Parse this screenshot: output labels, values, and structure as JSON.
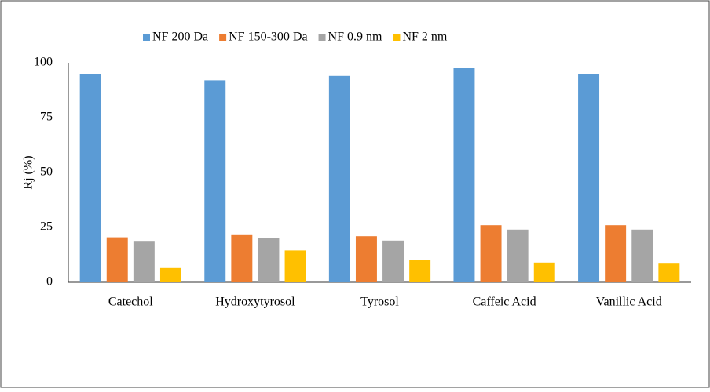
{
  "chart_data": {
    "type": "bar",
    "y_label": "Rj (%)",
    "categories": [
      "Catechol",
      "Hydroxytyrosol",
      "Tyrosol",
      "Caffeic Acid",
      "Vanillic Acid"
    ],
    "series": [
      {
        "name": "NF 200 Da",
        "color": "#5b9bd5",
        "values": [
          95,
          92,
          94,
          97.5,
          95
        ]
      },
      {
        "name": "NF 150-300 Da",
        "color": "#ed7d31",
        "values": [
          20.5,
          21.5,
          21,
          26,
          26
        ]
      },
      {
        "name": "NF 0.9 nm",
        "color": "#a5a5a5",
        "values": [
          18.5,
          20,
          19,
          24,
          24
        ]
      },
      {
        "name": "NF 2 nm",
        "color": "#ffc000",
        "values": [
          6.5,
          14.5,
          10,
          9,
          8.5
        ]
      }
    ],
    "ylim": [
      0,
      100
    ],
    "yticks": [
      0,
      25,
      50,
      75,
      100
    ],
    "grid": false,
    "legend": "top"
  }
}
